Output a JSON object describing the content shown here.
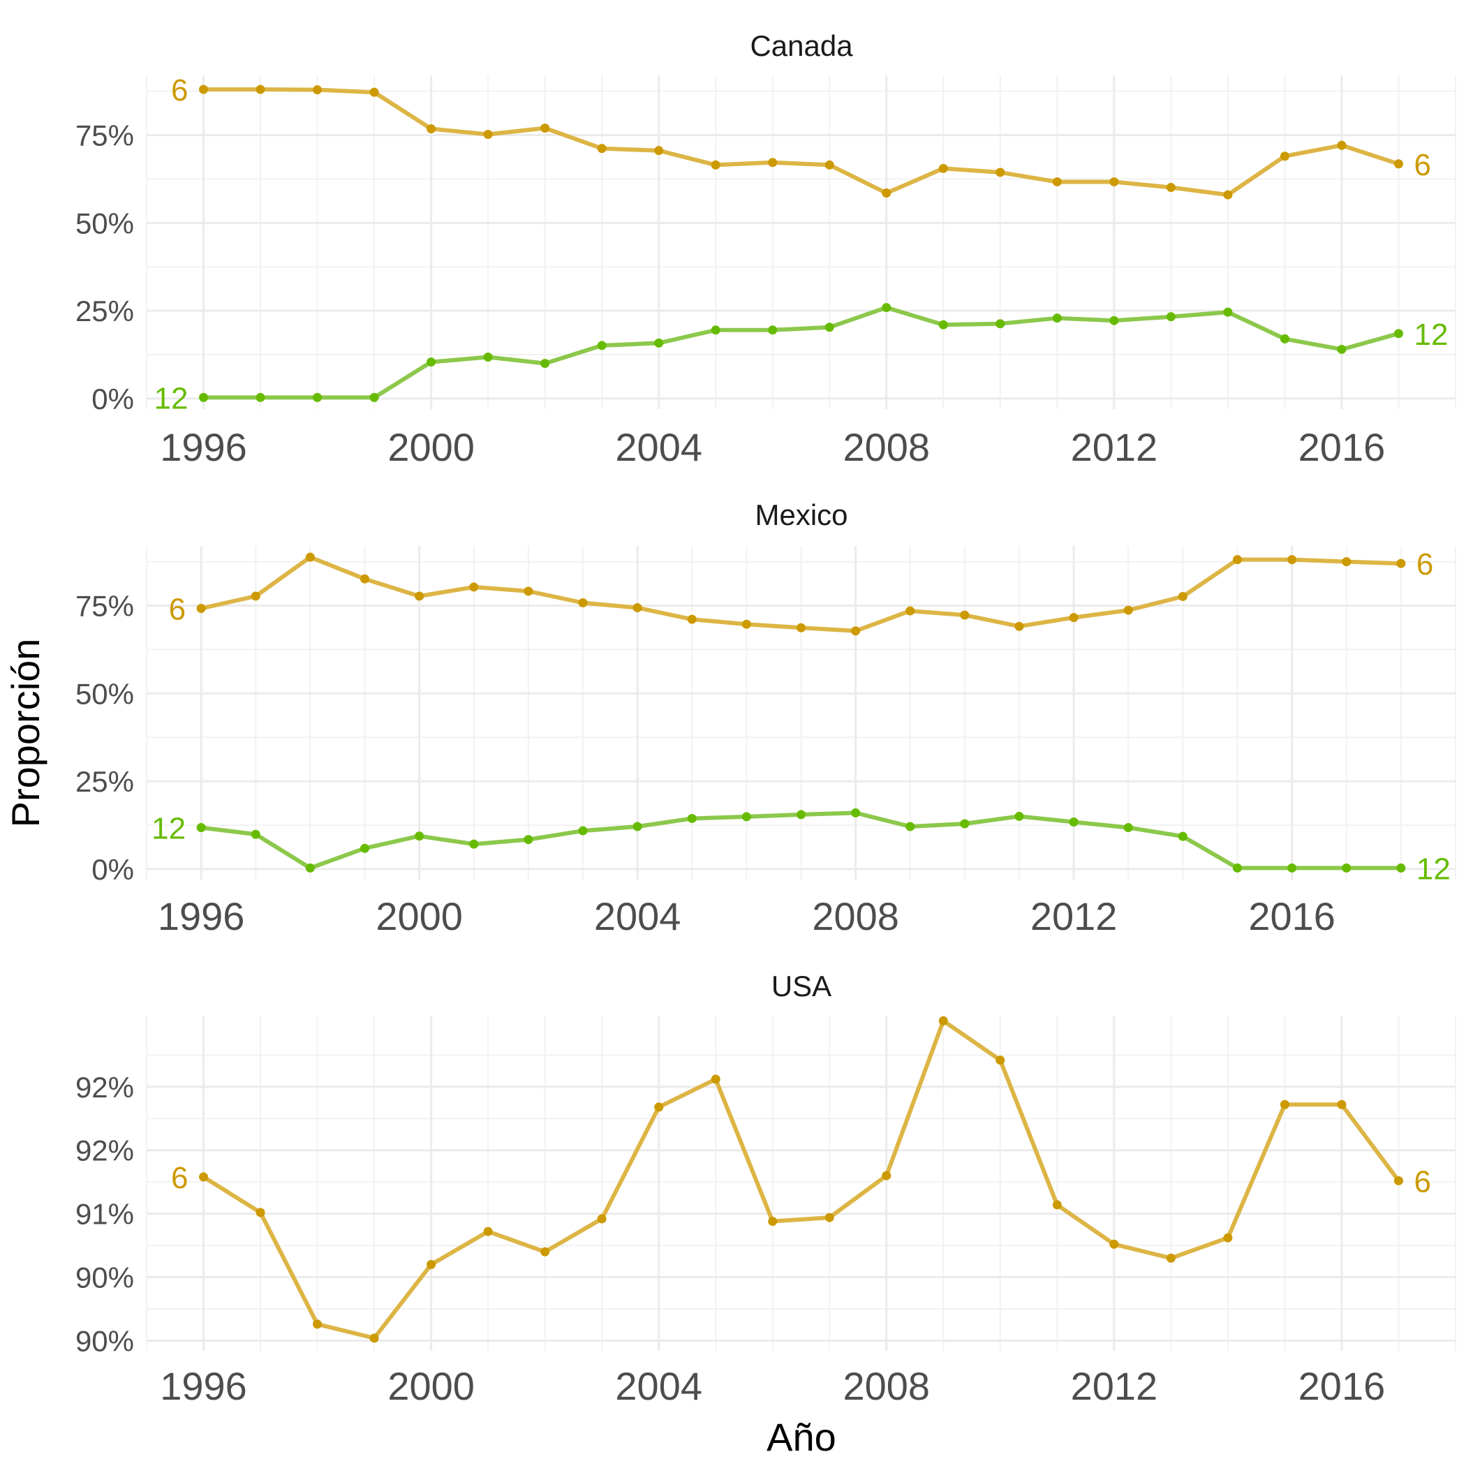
{
  "colors": {
    "series_6": "#cc9900",
    "series_12": "#66bb00",
    "line_6": "#ddb545",
    "line_12": "#8cc84b"
  },
  "ylabel": "Proporción",
  "xlabel": "Año",
  "chart_data": [
    {
      "type": "line",
      "title": "Canada",
      "x": [
        1996,
        1997,
        1998,
        1999,
        2000,
        2001,
        2002,
        2003,
        2004,
        2005,
        2006,
        2007,
        2008,
        2009,
        2010,
        2011,
        2012,
        2013,
        2014,
        2015,
        2016,
        2017
      ],
      "xlim": [
        1995,
        2018
      ],
      "x_ticks": [
        "1996",
        "2000",
        "2004",
        "2008",
        "2012",
        "2016"
      ],
      "ylim": [
        -0.03,
        0.92
      ],
      "y_ticks": [
        0,
        0.25,
        0.5,
        0.75
      ],
      "y_tick_labels": [
        "0%",
        "25%",
        "50%",
        "75%"
      ],
      "series": [
        {
          "name": "6",
          "color": "#cc9900",
          "values": [
            0.88,
            0.88,
            0.879,
            0.872,
            0.768,
            0.752,
            0.77,
            0.712,
            0.706,
            0.665,
            0.672,
            0.665,
            0.585,
            0.655,
            0.644,
            0.617,
            0.617,
            0.601,
            0.58,
            0.69,
            0.721,
            0.668
          ]
        },
        {
          "name": "12",
          "color": "#66bb00",
          "values": [
            0.003,
            0.003,
            0.003,
            0.003,
            0.104,
            0.118,
            0.1,
            0.151,
            0.158,
            0.195,
            0.195,
            0.203,
            0.259,
            0.21,
            0.213,
            0.229,
            0.222,
            0.233,
            0.246,
            0.17,
            0.14,
            0.185
          ]
        }
      ]
    },
    {
      "type": "line",
      "title": "Mexico",
      "x": [
        1996,
        1997,
        1998,
        1999,
        2000,
        2001,
        2002,
        2003,
        2004,
        2005,
        2006,
        2007,
        2008,
        2009,
        2010,
        2011,
        2012,
        2013,
        2014,
        2015,
        2016,
        2017,
        2018
      ],
      "xlim": [
        1995,
        2019
      ],
      "x_ticks": [
        "1996",
        "2000",
        "2004",
        "2008",
        "2012",
        "2016"
      ],
      "ylim": [
        -0.03,
        0.92
      ],
      "y_ticks": [
        0,
        0.25,
        0.5,
        0.75
      ],
      "y_tick_labels": [
        "0%",
        "25%",
        "50%",
        "75%"
      ],
      "series": [
        {
          "name": "6",
          "color": "#cc9900",
          "values": [
            0.742,
            0.777,
            0.888,
            0.826,
            0.777,
            0.803,
            0.791,
            0.758,
            0.744,
            0.711,
            0.697,
            0.687,
            0.678,
            0.735,
            0.723,
            0.691,
            0.716,
            0.737,
            0.776,
            0.881,
            0.881,
            0.875,
            0.87
          ]
        },
        {
          "name": "12",
          "color": "#66bb00",
          "values": [
            0.118,
            0.099,
            0.003,
            0.059,
            0.094,
            0.071,
            0.084,
            0.109,
            0.121,
            0.144,
            0.149,
            0.155,
            0.16,
            0.121,
            0.129,
            0.15,
            0.134,
            0.118,
            0.093,
            0.003,
            0.003,
            0.003,
            0.003
          ]
        }
      ]
    },
    {
      "type": "line",
      "title": "USA",
      "x": [
        1996,
        1997,
        1998,
        1999,
        2000,
        2001,
        2002,
        2003,
        2004,
        2005,
        2006,
        2007,
        2008,
        2009,
        2010,
        2011,
        2012,
        2013,
        2014,
        2015,
        2016,
        2017
      ],
      "xlim": [
        1995,
        2018
      ],
      "x_ticks": [
        "1996",
        "2000",
        "2004",
        "2008",
        "2012",
        "2016"
      ],
      "ylim": [
        0.8992,
        0.9256
      ],
      "y_ticks": [
        0.9,
        0.905,
        0.91,
        0.915,
        0.92
      ],
      "y_tick_labels": [
        "90%",
        "90%",
        "91%",
        "92%",
        "92%"
      ],
      "series": [
        {
          "name": "6",
          "color": "#cc9900",
          "values": [
            0.9129,
            0.9101,
            0.9013,
            0.9002,
            0.906,
            0.9086,
            0.907,
            0.9096,
            0.9184,
            0.9206,
            0.9094,
            0.9097,
            0.913,
            0.9252,
            0.9221,
            0.9107,
            0.9076,
            0.9065,
            0.9081,
            0.9186,
            0.9186,
            0.9126
          ]
        }
      ]
    }
  ]
}
